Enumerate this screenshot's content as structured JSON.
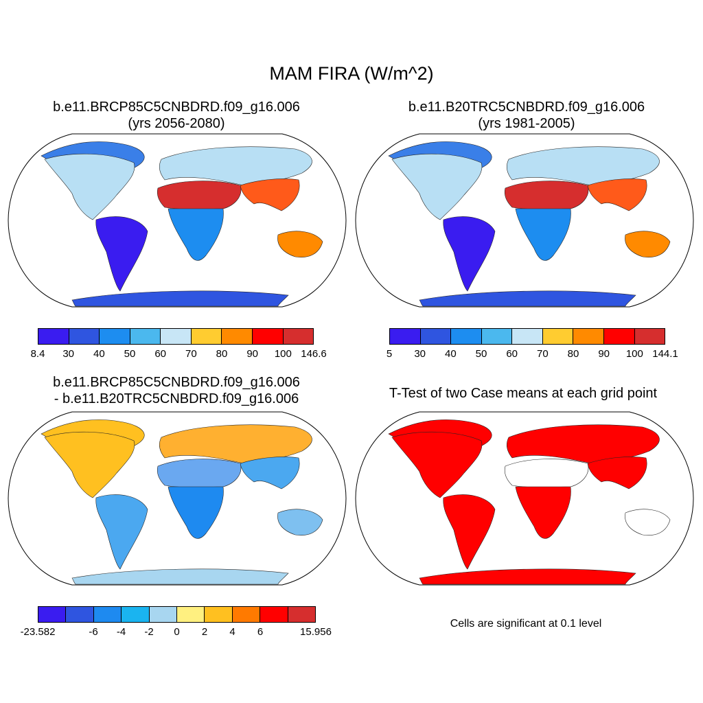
{
  "title": "MAM FIRA (W/m^2)",
  "panels": [
    {
      "title_line1": "b.e11.BRCP85C5CNBDRD.f09_g16.006",
      "title_line2": "(yrs 2056-2080)"
    },
    {
      "title_line1": "b.e11.B20TRC5CNBDRD.f09_g16.006",
      "title_line2": "(yrs 1981-2005)"
    },
    {
      "title_line1": "b.e11.BRCP85C5CNBDRD.f09_g16.006",
      "title_line2": "- b.e11.B20TRC5CNBDRD.f09_g16.006"
    },
    {
      "title_line1": "T-Test of two Case means at each grid point",
      "title_line2": ""
    }
  ],
  "colorbars": [
    {
      "colors": [
        "#3a1cf0",
        "#2f55e0",
        "#1d8df0",
        "#4bb8ee",
        "#c8e6f6",
        "#ffcc30",
        "#ff8a00",
        "#ff0000",
        "#d62e2e"
      ],
      "labels": [
        "8.4",
        "30",
        "40",
        "50",
        "60",
        "70",
        "80",
        "90",
        "100",
        "146.6"
      ]
    },
    {
      "colors": [
        "#3a1cf0",
        "#2f55e0",
        "#1d8df0",
        "#4bb8ee",
        "#c8e6f6",
        "#ffcc30",
        "#ff8a00",
        "#ff0000",
        "#d62e2e"
      ],
      "labels": [
        "5",
        "30",
        "40",
        "50",
        "60",
        "70",
        "80",
        "90",
        "100",
        "144.1"
      ]
    },
    {
      "colors": [
        "#3a1cf0",
        "#2f55e0",
        "#1e8af0",
        "#1ab4f0",
        "#a8d6f0",
        "#fff080",
        "#ffc020",
        "#ff7a00",
        "#ff0000",
        "#d62e2e"
      ],
      "labels": [
        "-23.582",
        "",
        "-6",
        "-4",
        "-2",
        "0",
        "2",
        "4",
        "6",
        "",
        "15.956"
      ]
    }
  ],
  "note": "Cells are significant at 0.1 level",
  "map_fills": {
    "panel1": {
      "ocean": "#ffffff",
      "arctic": "#3a7fe8",
      "northamerica": "#b8dff4",
      "southamerica": "#3a1cf0",
      "sahara": "#d62e2e",
      "southafrica": "#1d8df0",
      "eurasia": "#b8dff4",
      "asia_south": "#ff5a1a",
      "australia": "#ff8a00",
      "antarctica": "#2f55e0"
    },
    "panel2": {
      "ocean": "#ffffff",
      "arctic": "#3a7fe8",
      "northamerica": "#b8dff4",
      "southamerica": "#3a1cf0",
      "sahara": "#d62e2e",
      "southafrica": "#1d8df0",
      "eurasia": "#b8dff4",
      "asia_south": "#ff5a1a",
      "australia": "#ff8a00",
      "antarctica": "#2f55e0"
    },
    "panel3": {
      "ocean": "#ffffff",
      "arctic": "#ffc020",
      "northamerica": "#ffc020",
      "southamerica": "#4ba8f0",
      "sahara": "#6aa8f0",
      "southafrica": "#1e8af0",
      "eurasia": "#ffb030",
      "asia_south": "#4ba8f0",
      "australia": "#7ec0f0",
      "antarctica": "#a8d6f0"
    },
    "panel4": {
      "ocean": "#ffffff",
      "arctic": "#ff0000",
      "northamerica": "#ff0000",
      "southamerica": "#ff0000",
      "sahara": "#ffffff",
      "southafrica": "#ff0000",
      "eurasia": "#ff0000",
      "asia_south": "#ff0000",
      "australia": "#ffffff",
      "antarctica": "#ff0000"
    }
  }
}
